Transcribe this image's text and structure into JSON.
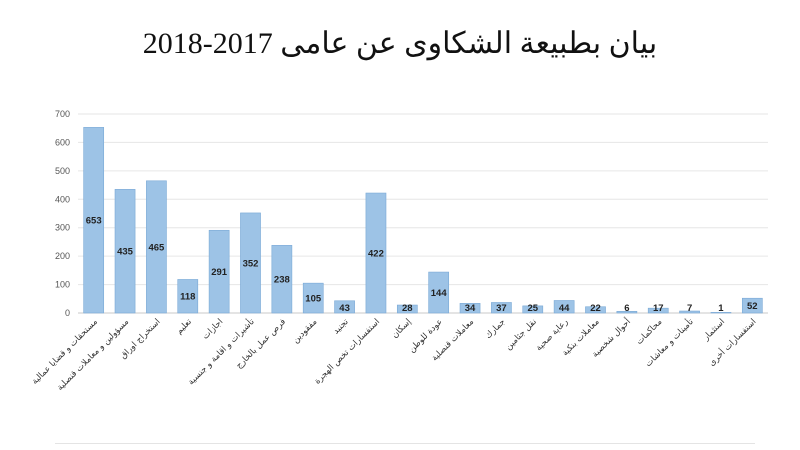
{
  "chart_data": {
    "type": "bar",
    "title": "بيان بطبيعة الشكاوى عن عامى 2017-2018",
    "xlabel": "",
    "ylabel": "",
    "ylim": [
      0,
      700
    ],
    "yticks": [
      0,
      100,
      200,
      300,
      400,
      500,
      600,
      700
    ],
    "grid": true,
    "legend": "none",
    "bar_color": "#9dc3e6",
    "bar_edge_color": "#7aa9d6",
    "categories": [
      "مستحقات و قضايا عمالية",
      "مسؤولين و معاملات قنصلية",
      "استخراج اوراق",
      "تعليم",
      "اجازات",
      "تأشيرات و اقامة و جنسية",
      "فرص عمل بالخارج",
      "مفقودين",
      "تجنيد",
      "استفسارات تخص الهجرة",
      "إسكان",
      "عودة للوطن",
      "معاملات قنصلية",
      "جمارك",
      "نقل جثامين",
      "رعاية صحية",
      "معاملات بنكية",
      "أحوال شخصية",
      "محاكمات",
      "تأمينات و معاشات",
      "استثمار",
      "استفسارات أخرى"
    ],
    "values": [
      653,
      435,
      465,
      118,
      291,
      352,
      238,
      105,
      43,
      422,
      28,
      144,
      34,
      37,
      25,
      44,
      22,
      6,
      17,
      7,
      1,
      52
    ],
    "data_labels": [
      "653",
      "435",
      "465",
      "118",
      "291",
      "352",
      "238",
      "105",
      "43",
      "422",
      "28",
      "144",
      "34",
      "37",
      "25",
      "44",
      "22",
      "6",
      "17",
      "7",
      "1",
      "52"
    ]
  }
}
